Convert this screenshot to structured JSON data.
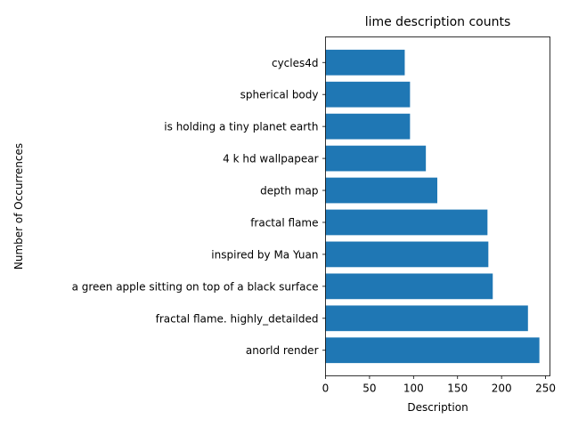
{
  "chart_data": {
    "type": "bar",
    "orientation": "horizontal",
    "title": "lime description counts",
    "xlabel": "Description",
    "ylabel": "Number of Occurrences",
    "categories": [
      "anorld render",
      "fractal flame. highly_detailded",
      "a green apple sitting on top of a black surface",
      "inspired by Ma Yuan",
      "fractal flame",
      "depth map",
      "4 k hd wallpapear",
      "is holding a tiny planet earth",
      "spherical body",
      "cycles4d"
    ],
    "values": [
      243,
      230,
      190,
      185,
      184,
      127,
      114,
      96,
      96,
      90
    ],
    "xlim": [
      0,
      255
    ],
    "xticks": [
      0,
      50,
      100,
      150,
      200,
      250
    ],
    "grid": false,
    "legend": "none",
    "bar_color": "#1f77b4"
  }
}
